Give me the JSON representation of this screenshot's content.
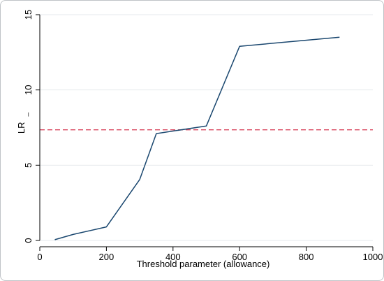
{
  "chart_data": {
    "type": "line",
    "title": "",
    "xlabel": "Threshold parameter (allowance)",
    "ylabel": "LR",
    "ylabel_suffix": "_",
    "xlim": [
      0,
      1000
    ],
    "ylim": [
      0,
      15
    ],
    "xticks": [
      0,
      200,
      400,
      600,
      800,
      1000
    ],
    "yticks": [
      0,
      5,
      10,
      15
    ],
    "grid": true,
    "legend": "none",
    "series": [
      {
        "color": "#1a476f",
        "x": [
          45,
          100,
          200,
          300,
          350,
          500,
          600,
          900
        ],
        "y": [
          0.05,
          0.4,
          0.9,
          4.05,
          7.1,
          7.6,
          12.9,
          13.5
        ]
      }
    ],
    "reference_lines": [
      {
        "axis": "y",
        "value": 7.35,
        "color": "#d9485f",
        "style": "dashed"
      }
    ]
  }
}
